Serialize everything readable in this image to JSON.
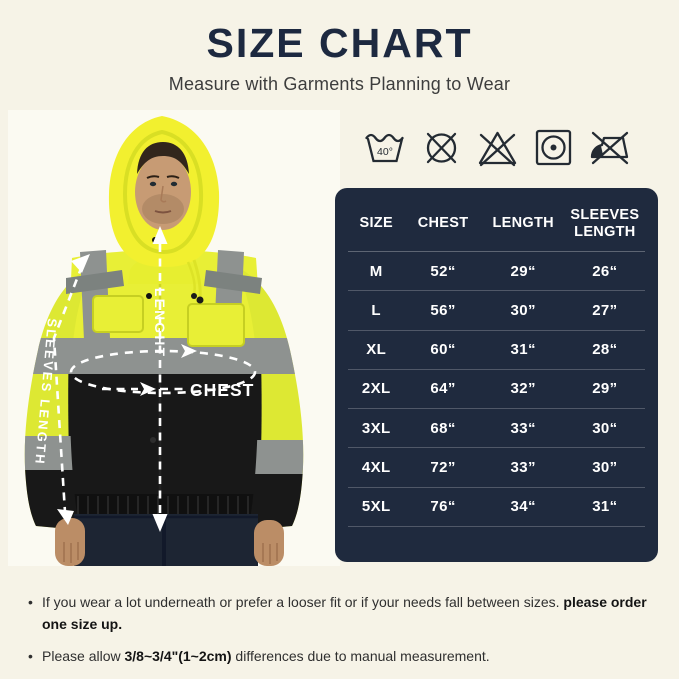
{
  "header": {
    "title": "SIZE CHART",
    "subtitle": "Measure with Garments Planning to Wear"
  },
  "care_icons": {
    "wash_temp_label": "40°",
    "items": [
      {
        "name": "machine-wash-40"
      },
      {
        "name": "do-not-dry-clean"
      },
      {
        "name": "do-not-bleach"
      },
      {
        "name": "tumble-dry"
      },
      {
        "name": "do-not-iron"
      }
    ]
  },
  "model_annotations": {
    "length_label": "LENGHT",
    "chest_label": "CHEST",
    "sleeves_label": "SLEEVES LENGTH"
  },
  "sizing_table": {
    "headers": [
      "SIZE",
      "CHEST",
      "LENGTH",
      "SLEEVES LENGTH"
    ],
    "rows": [
      [
        "M",
        "52“",
        "29“",
        "26“"
      ],
      [
        "L",
        "56”",
        "30”",
        "27”"
      ],
      [
        "XL",
        "60“",
        "31“",
        "28“"
      ],
      [
        "2XL",
        "64”",
        "32”",
        "29”"
      ],
      [
        "3XL",
        "68“",
        "33“",
        "30“"
      ],
      [
        "4XL",
        "72”",
        "33”",
        "30”"
      ],
      [
        "5XL",
        "76“",
        "34“",
        "31“"
      ]
    ]
  },
  "chart_data": {
    "type": "table",
    "title": "SIZE CHART",
    "subtitle": "Measure with Garments Planning to Wear",
    "columns": [
      "SIZE",
      "CHEST",
      "LENGTH",
      "SLEEVES LENGTH"
    ],
    "rows": [
      {
        "size": "M",
        "chest_in": 52,
        "length_in": 29,
        "sleeves_length_in": 26
      },
      {
        "size": "L",
        "chest_in": 56,
        "length_in": 30,
        "sleeves_length_in": 27
      },
      {
        "size": "XL",
        "chest_in": 60,
        "length_in": 31,
        "sleeves_length_in": 28
      },
      {
        "size": "2XL",
        "chest_in": 64,
        "length_in": 32,
        "sleeves_length_in": 29
      },
      {
        "size": "3XL",
        "chest_in": 68,
        "length_in": 33,
        "sleeves_length_in": 30
      },
      {
        "size": "4XL",
        "chest_in": 72,
        "length_in": 33,
        "sleeves_length_in": 30
      },
      {
        "size": "5XL",
        "chest_in": 76,
        "length_in": 34,
        "sleeves_length_in": 31
      }
    ],
    "units": "inches"
  },
  "notes": [
    {
      "segments": [
        {
          "text": "If you wear a lot underneath or prefer a looser fit or if your needs fall between sizes. ",
          "bold": false
        },
        {
          "text": "please order one size up.",
          "bold": true
        }
      ]
    },
    {
      "segments": [
        {
          "text": "Please allow ",
          "bold": false
        },
        {
          "text": "3/8~3/4\"(1~2cm)",
          "bold": true
        },
        {
          "text": " differences due to manual measurement.",
          "bold": false
        }
      ]
    }
  ],
  "colors": {
    "page_background": "#f6f3e7",
    "table_background": "#1f2a3e",
    "title_navy": "#1d2940",
    "hivis_yellow": "#e8ef36",
    "reflective_gray": "#8e9290",
    "fabric_black": "#181818",
    "annotation_white": "#ffffff"
  }
}
